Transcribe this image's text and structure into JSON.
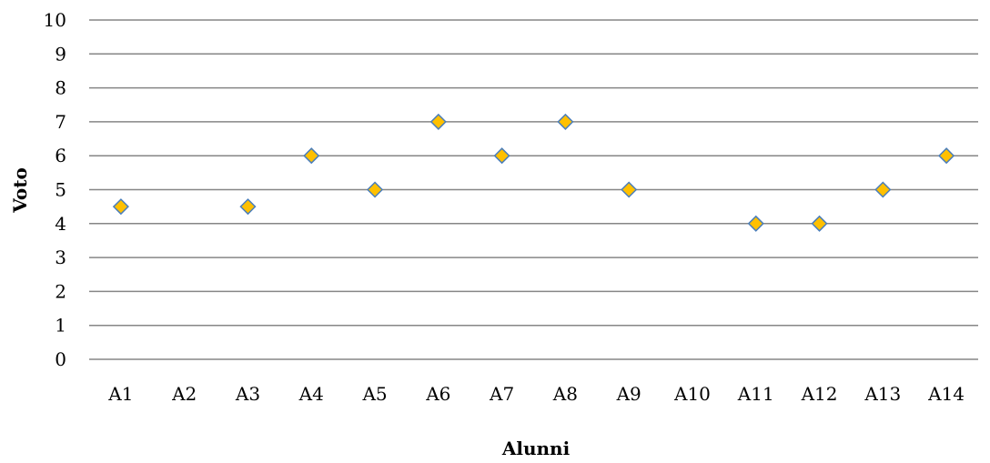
{
  "chart_data": {
    "type": "scatter",
    "title": "",
    "xlabel": "Alunni",
    "ylabel": "Voto",
    "categories": [
      "A1",
      "A2",
      "A3",
      "A4",
      "A5",
      "A6",
      "A7",
      "A8",
      "A9",
      "A10",
      "A11",
      "A12",
      "A13",
      "A14"
    ],
    "series": [
      {
        "values": [
          4.5,
          null,
          4.5,
          6,
          5,
          7,
          6,
          7,
          5,
          null,
          4,
          4,
          5,
          6
        ],
        "marker": "diamond",
        "color": "#FFC000",
        "edge_color": "#4A7EBB"
      }
    ],
    "ylim": [
      0,
      10
    ],
    "yticks": [
      0,
      1,
      2,
      3,
      4,
      5,
      6,
      7,
      8,
      9,
      10
    ],
    "grid": true,
    "legend": "none",
    "gridline_color": "#868686"
  }
}
